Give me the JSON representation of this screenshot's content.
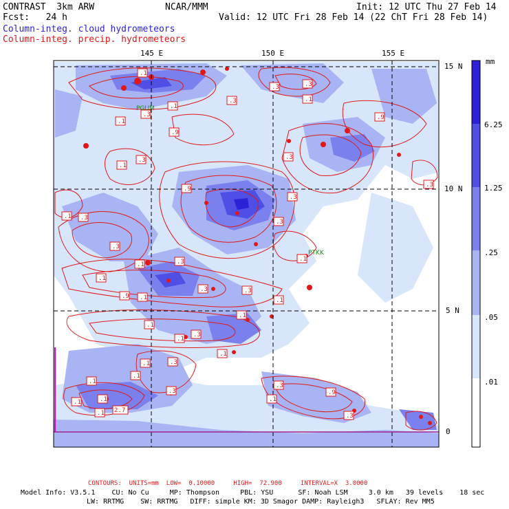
{
  "header": {
    "model": "CONTRAST  3km ARW",
    "org": "NCAR/MMM",
    "init": "Init: 12 UTC Thu 27 Feb 14",
    "fcst": "Fcst:   24 h",
    "valid": "Valid: 12 UTC Fri 28 Feb 14 (22 ChT Fri 28 Feb 14)"
  },
  "legend_lines": {
    "cloud": "Column-integ. cloud hydrometeors",
    "precip": "Column-integ. precip. hydrometeors"
  },
  "axes": {
    "lon_labels": [
      "145 E",
      "150 E",
      "155 E"
    ],
    "lat_labels": [
      "15 N",
      "10 N",
      "5 N",
      "0"
    ]
  },
  "colorbar": {
    "unit": "mm",
    "labels": [
      "6.25",
      "1.25",
      ".25",
      ".05",
      ".01"
    ],
    "colors": [
      "#2d20d8",
      "#4f4fe6",
      "#7a80ee",
      "#a9b4f4",
      "#d7e6fb",
      "#ffffff"
    ]
  },
  "stations": [
    "PGUM",
    "PTKK"
  ],
  "contour_labels": [
    ".1",
    ".3",
    ".9",
    "2.7"
  ],
  "footer": {
    "contours": "CONTOURS:  UNITS=mm  LOW=  0.10000     HIGH=  72.900     INTERVAL=X  3.0000",
    "model_info_1": "Model Info: V3.5.1    CU: No Cu     MP: Thompson     PBL: YSU      SF: Noah LSM     3.0 km   39 levels    18 sec",
    "model_info_2": "LW: RRTMG    SW: RRTMG   DIFF: simple KM: 3D Smagor DAMP: Rayleigh3   SFLAY: Rev MM5"
  }
}
